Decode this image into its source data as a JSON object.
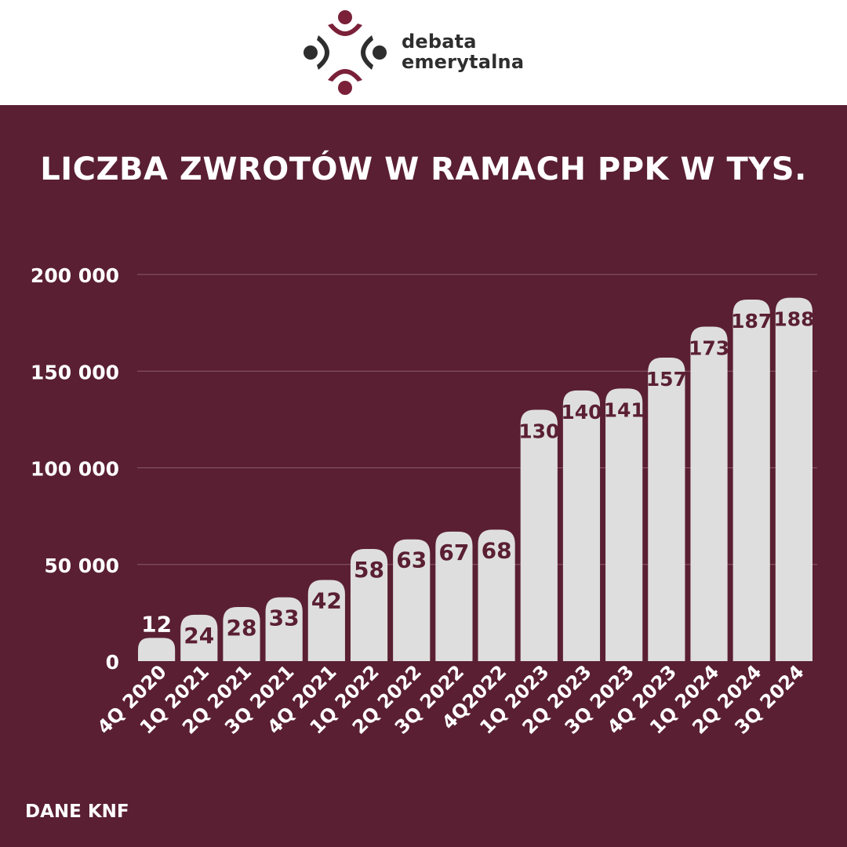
{
  "logo": {
    "line1": "debata",
    "line2": "emerytalna"
  },
  "source": "DANE KNF",
  "colors": {
    "background": "#5a1f32",
    "bar": "#dedede",
    "grid": "#8a5a68",
    "text": "#ffffff",
    "label_dark": "#5a1f32"
  },
  "chart_data": {
    "type": "bar",
    "title": "LICZBA ZWROTÓW W RAMACH PPK W TYS.",
    "categories": [
      "4Q 2020",
      "1Q 2021",
      "2Q 2021",
      "3Q 2021",
      "4Q 2021",
      "1Q 2022",
      "2Q 2022",
      "3Q 2022",
      "4Q2022",
      "1Q 2023",
      "2Q 2023",
      "3Q 2023",
      "4Q 2023",
      "1Q 2024",
      "2Q 2024",
      "3Q 2024"
    ],
    "values": [
      12,
      24,
      28,
      33,
      42,
      58,
      63,
      67,
      68,
      130,
      140,
      141,
      157,
      173,
      187,
      188
    ],
    "data_labels": [
      "12",
      "24",
      "28",
      "33",
      "42",
      "58",
      "63",
      "67",
      "68",
      "130",
      "140",
      "141",
      "157",
      "173",
      "187",
      "188"
    ],
    "yticks": [
      0,
      50000,
      100000,
      150000,
      200000
    ],
    "ytick_labels": [
      "0",
      "50 000",
      "100 000",
      "150 000",
      "200 000"
    ],
    "ylim": [
      0,
      200000
    ],
    "value_multiplier": 1000,
    "grid": true
  }
}
